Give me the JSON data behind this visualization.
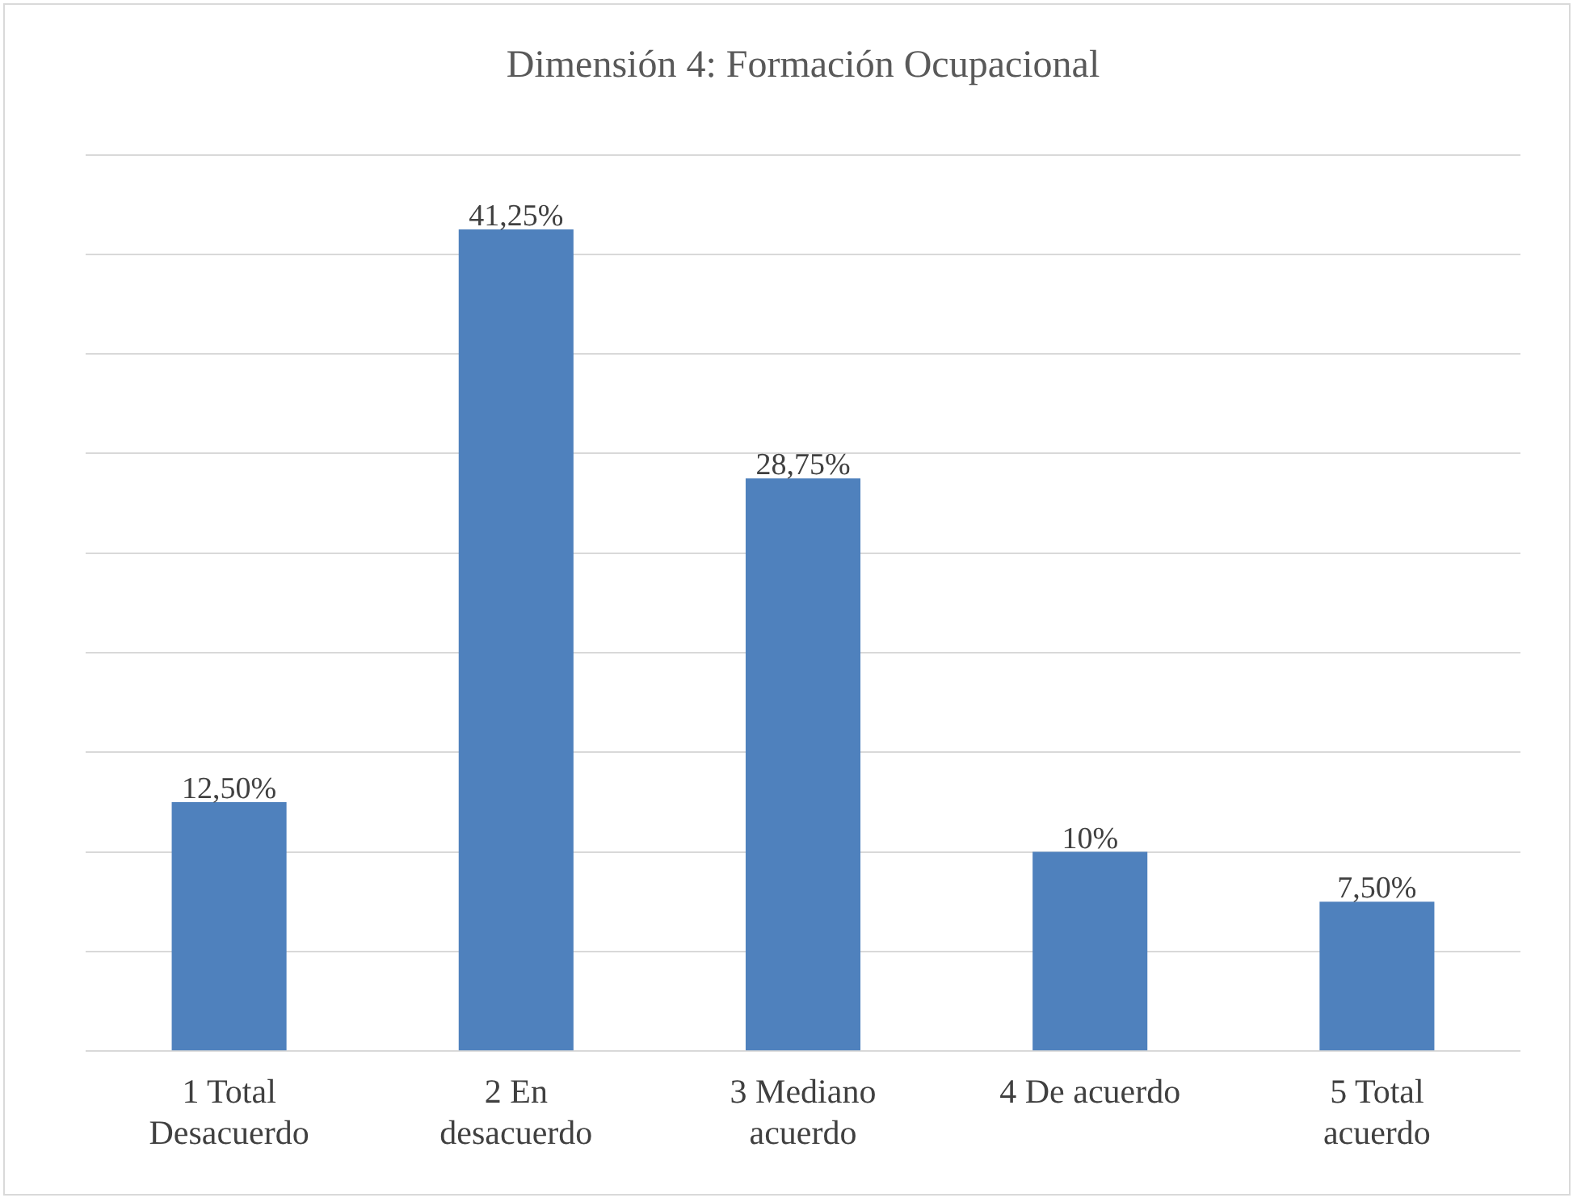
{
  "chart_data": {
    "type": "bar",
    "title": "Dimensión 4: Formación Ocupacional",
    "categories": [
      "1 Total Desacuerdo",
      "2 En desacuerdo",
      "3 Mediano acuerdo",
      "4 De acuerdo",
      "5 Total acuerdo"
    ],
    "values": [
      12.5,
      41.25,
      28.75,
      10,
      7.5
    ],
    "value_labels": [
      "12,50%",
      "41,25%",
      "28,75%",
      "10%",
      "7,50%"
    ],
    "color": "#4f81bd",
    "ylim": [
      0,
      45
    ],
    "yticks": [
      {
        "value": 0,
        "label": null
      },
      {
        "value": 5,
        "label": null
      },
      {
        "value": 10,
        "label": null
      },
      {
        "value": 15,
        "label": null
      },
      {
        "value": 20,
        "label": null
      },
      {
        "value": 25,
        "label": null
      },
      {
        "value": 30,
        "label": null
      },
      {
        "value": 35,
        "label": null
      },
      {
        "value": 40,
        "label": null
      },
      {
        "value": 45,
        "label": null
      }
    ],
    "grid": "y",
    "tick_labels": "x"
  }
}
